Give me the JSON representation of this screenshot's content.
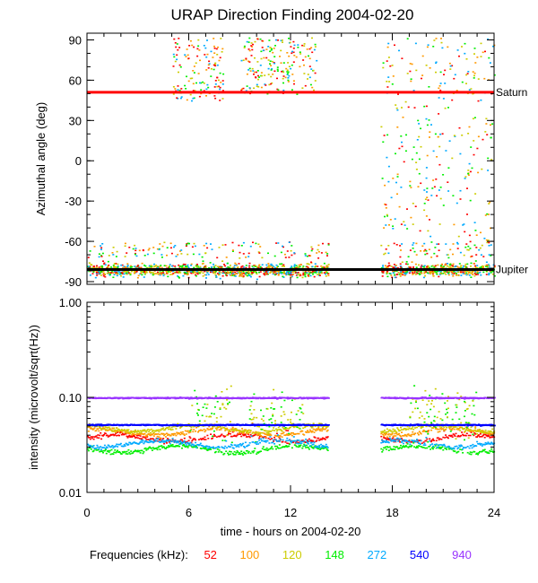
{
  "chart_data": [
    {
      "type": "scatter",
      "title": "URAP Direction Finding  2004-02-20",
      "xlabel": "",
      "ylabel": "Azimuthal angle (deg)",
      "xlim": [
        0,
        24
      ],
      "ylim": [
        -92,
        95
      ],
      "x_ticks": [
        0,
        6,
        12,
        18,
        24
      ],
      "y_ticks": [
        90,
        60,
        30,
        0,
        -30,
        -60,
        -90
      ],
      "y_tick_labels": [
        "90",
        "60",
        "30",
        "0",
        "-30",
        "-60",
        "-90"
      ],
      "reference_lines": [
        {
          "name": "Saturn",
          "value": 51,
          "color": "#ff0000"
        },
        {
          "name": "Jupiter",
          "value": -81,
          "color": "#000000"
        }
      ],
      "data_gaps_hours": [
        [
          14.2,
          17.3
        ]
      ],
      "clusters": [
        {
          "x": [
            0,
            14.2
          ],
          "y": [
            -90,
            -68
          ],
          "note": "dense band around Jupiter direction"
        },
        {
          "x": [
            17.3,
            24
          ],
          "y": [
            -90,
            -68
          ],
          "note": "dense band around Jupiter direction"
        },
        {
          "x": [
            5,
            8
          ],
          "y": [
            45,
            92
          ],
          "note": "cluster near Saturn direction"
        },
        {
          "x": [
            9,
            13.5
          ],
          "y": [
            50,
            92
          ],
          "note": "scattered high-angle points"
        },
        {
          "x": [
            17.3,
            24
          ],
          "y": [
            -60,
            92
          ],
          "note": "sparse scatter"
        }
      ]
    },
    {
      "type": "scatter",
      "title": "",
      "xlabel": "time - hours on 2004-02-20",
      "ylabel": "intensity (microvolt/sqrt(Hz))",
      "xlim": [
        0,
        24
      ],
      "ylim": [
        0.01,
        1.0
      ],
      "yscale": "log",
      "x_ticks": [
        0,
        6,
        12,
        18,
        24
      ],
      "x_tick_labels": [
        "0",
        "6",
        "12",
        "18",
        "24"
      ],
      "y_ticks": [
        1.0,
        0.1,
        0.01
      ],
      "y_tick_labels": [
        "1.00",
        "0.10",
        "0.01"
      ],
      "data_gaps_hours": [
        [
          14.2,
          17.3
        ]
      ],
      "series": [
        {
          "name": "52",
          "color": "#ff0000",
          "baseline": 0.038
        },
        {
          "name": "100",
          "color": "#ff9900",
          "baseline": 0.044
        },
        {
          "name": "120",
          "color": "#cccc00",
          "baseline": 0.048
        },
        {
          "name": "148",
          "color": "#00ee00",
          "baseline": 0.029
        },
        {
          "name": "272",
          "color": "#00aaff",
          "baseline": 0.033
        },
        {
          "name": "540",
          "color": "#0000ff",
          "baseline": 0.052
        },
        {
          "name": "940",
          "color": "#9933ff",
          "baseline": 0.1
        }
      ]
    }
  ],
  "legend": {
    "label": "Frequencies (kHz):",
    "items": [
      {
        "value": "52",
        "color": "#ff0000"
      },
      {
        "value": "100",
        "color": "#ff9900"
      },
      {
        "value": "120",
        "color": "#cccc00"
      },
      {
        "value": "148",
        "color": "#00ee00"
      },
      {
        "value": "272",
        "color": "#00aaff"
      },
      {
        "value": "540",
        "color": "#0000ff"
      },
      {
        "value": "940",
        "color": "#9933ff"
      }
    ]
  }
}
